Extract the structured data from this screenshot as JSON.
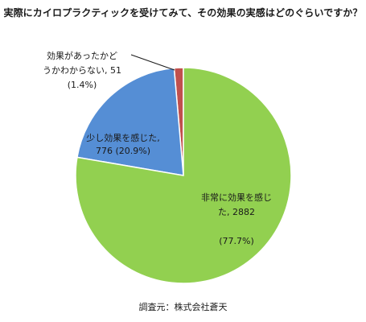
{
  "chart_data": {
    "type": "pie",
    "title": "実際にカイロプラクティックを受けてみて、その効果の実感はどのぐらいですか？",
    "source": "調査元：株式会社蒼天",
    "slices": [
      {
        "label": "非常に効果を感じた",
        "value": 2882,
        "percent": 77.7,
        "color": "#92d050",
        "label_lines": [
          "非常に効果を感じ",
          "た, 2882",
          "",
          "(77.7%)"
        ]
      },
      {
        "label": "少し効果を感じた",
        "value": 776,
        "percent": 20.9,
        "color": "#558ed5",
        "label_lines": [
          "少し効果を感じた,",
          "776 (20.9%)"
        ]
      },
      {
        "label": "効果があったかどうかわからない",
        "value": 51,
        "percent": 1.4,
        "color": "#c0504d",
        "label_lines": [
          "効果があったかど",
          "うかわからない, 51",
          "(1.4%)"
        ]
      }
    ]
  }
}
